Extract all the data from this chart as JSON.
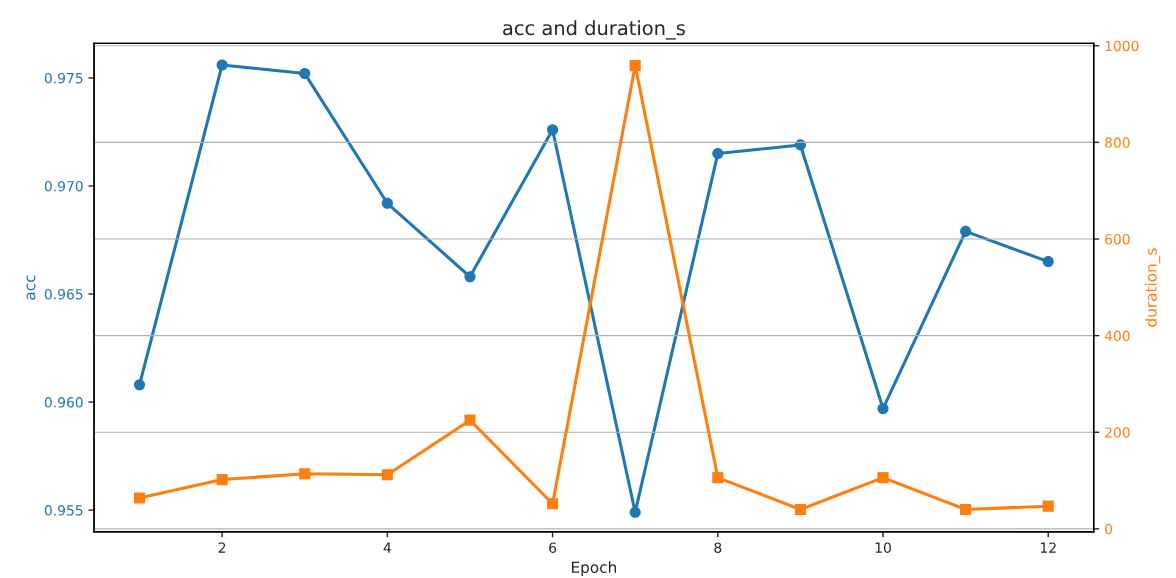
{
  "chart_data": {
    "type": "line",
    "title": "acc and duration_s",
    "xlabel": "Epoch",
    "ylabel": "acc",
    "y2label": "duration_s",
    "x": [
      1,
      2,
      3,
      4,
      5,
      6,
      7,
      8,
      9,
      10,
      11,
      12
    ],
    "series": [
      {
        "color": "#1f77b4",
        "marker": "circle",
        "values": [
          0.9608,
          0.9756,
          0.9752,
          0.9692,
          0.9658,
          0.9726,
          0.9549,
          0.9715,
          0.9719,
          0.9597,
          0.9679,
          0.9665
        ]
      },
      {
        "color": "#ff7f0e",
        "marker": "square",
        "axis": "y2",
        "values": [
          64,
          102,
          114,
          112,
          225,
          52,
          959,
          106,
          40,
          106,
          40,
          47
        ]
      }
    ],
    "xlim": [
      0.45,
      12.55
    ],
    "xticks": [
      2,
      4,
      6,
      8,
      10,
      12
    ],
    "ylim": [
      0.954,
      0.9766
    ],
    "yticks": [
      {
        "value": 0.955,
        "label": "0.955"
      },
      {
        "value": 0.96,
        "label": "0.960"
      },
      {
        "value": 0.965,
        "label": "0.965"
      },
      {
        "value": 0.97,
        "label": "0.970"
      },
      {
        "value": 0.975,
        "label": "0.975"
      }
    ],
    "y2lim": [
      -6,
      1005
    ],
    "y2ticks": [
      0,
      200,
      400,
      600,
      800,
      1000
    ],
    "grid": "y2",
    "line_style": "solid"
  }
}
